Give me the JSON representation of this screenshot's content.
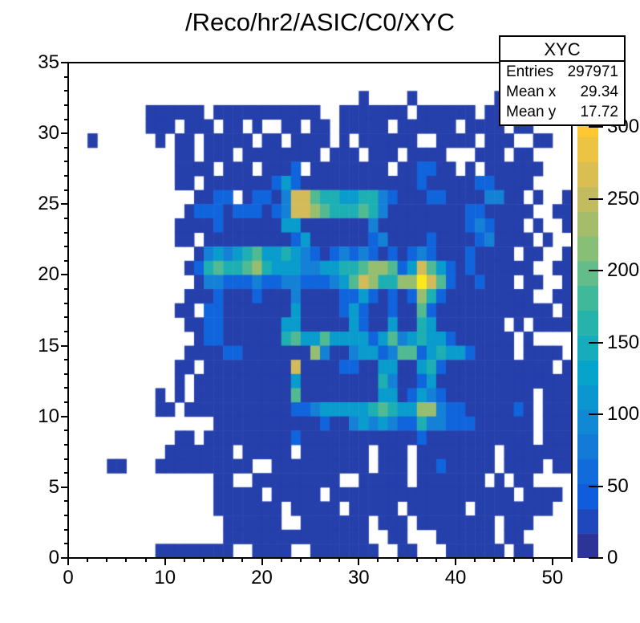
{
  "title": "/Reco/hr2/ASIC/C0/XYC",
  "stats": {
    "title": "XYC",
    "rows": [
      {
        "label": "Entries",
        "value": "297971"
      },
      {
        "label": "Mean x",
        "value": "29.34"
      },
      {
        "label": "Mean y",
        "value": "17.72"
      }
    ]
  },
  "chart_data": {
    "type": "heatmap",
    "title": "/Reco/hr2/ASIC/C0/XYC",
    "xlabel": "",
    "ylabel": "",
    "x_range": [
      0,
      52
    ],
    "y_range": [
      0,
      35
    ],
    "z_range": [
      0,
      345
    ],
    "x_ticks": [
      0,
      10,
      20,
      30,
      40,
      50
    ],
    "x_minor_step": 2,
    "y_ticks": [
      0,
      5,
      10,
      15,
      20,
      25,
      30,
      35
    ],
    "y_minor_step": 1,
    "colorbar_ticks": [
      0,
      50,
      100,
      150,
      200,
      250,
      300
    ],
    "n_contours": 20,
    "palette_name": "ROOT-kBird",
    "palette_stops": [
      [
        53,
        42,
        135
      ],
      [
        15,
        92,
        221
      ],
      [
        20,
        129,
        214
      ],
      [
        6,
        164,
        202
      ],
      [
        46,
        183,
        164
      ],
      [
        135,
        191,
        119
      ],
      [
        209,
        187,
        89
      ],
      [
        254,
        200,
        50
      ],
      [
        249,
        251,
        14
      ]
    ],
    "level_values": {
      "1": 18,
      "2": 52,
      "3": 86,
      "4": 120,
      "5": 155,
      "6": 190,
      "7": 225,
      "8": 260,
      "9": 330
    },
    "grid_note": "35 rows listed top (y=34) to bottom (y=0); 52 chars per row (x=0..51); '.'=empty bin, digits=occupancy level per level_values",
    "grid": [
      "....................................................",
      "....................................................",
      "..............................1....1........11......",
      "........111111.11111111111..1111111.111111.11111....",
      "........111.111.11.1..11.11.11111.111111.1111.11....",
      "..1......1.11.11111.11.1111.1.111111..1111.111..11",
      "...........11.111.11111111.111.111.1111...111.11....",
      "...........1111.111.1112.11111111.112211 1.111111....",
      "...........11.1111111242111111111111211111221111....",
      ".............1122.12213886554455321112211113311 1..11",
      "............122212221238876555653111111112211111..11",
      "...........111121111114411111113111111111232111 1..11",
      "...........11.1111111112411111123111121111231111 1..11",
      ".............134345644543212323212123211121111 11..11",
      "............125655675444334455677624864212111111..11",
      ".............133222322332223468755779862112111 11..11",
      "............111211121113111122421212752111111111..11",
      "...........11.221111111411112421121162111111111111 11",
      "............112211111144111114211411541111111 1.11111",
      ".............122111111564464444246345442111111.1....",
      "............1111221111111731134423662454421111 1111..",
      "...........11.111111111811112211441145211111111111 11",
      "...........1.111111111141111111153112411111111111111",
      ".........1.1.11111111116111111114412432111111111 1111",
      ".........11.111111111112234444456544773221111121 1111",
      "...............111111111112113434322533222111111 1111",
      "...........11.1111111112111111111111211111111111 1111",
      "..........1111111.11111.1111111.111.11111111.1111111",
      "....11...1111111111..1111111111.111.11211111.1111.11",
      "...............11..111111111..11111.1111111.1.11....",
      "...............11111.11111.1111111111111111111 1111..",
      "...............1111111.11111.11111.111111.11111111..",
      "................111111..1111111.111.11111111.111....",
      "................111111111111111..11...111111.11 .....",
      ".........11111111..1111..1111111..11...111111.11 ....."
    ]
  },
  "layout_colors": {
    "background": "#ffffff",
    "axis": "#000000",
    "text": "#000000"
  }
}
